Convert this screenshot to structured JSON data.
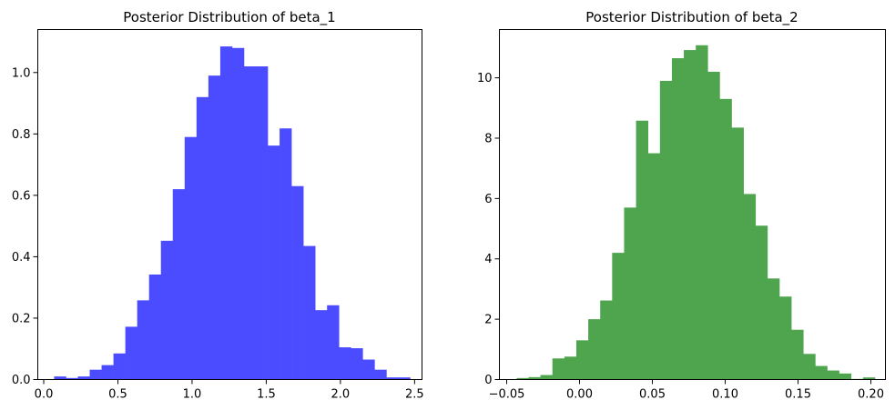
{
  "chart_data": [
    {
      "type": "bar",
      "title": "Posterior Distribution of beta_1",
      "xlabel": "",
      "ylabel": "",
      "color": "#4b4bff",
      "xlim": [
        -0.04,
        2.55
      ],
      "ylim": [
        0,
        1.14
      ],
      "grid": false,
      "bin_edges": [
        0.07,
        0.15,
        0.23,
        0.31,
        0.39,
        0.47,
        0.55,
        0.63,
        0.71,
        0.79,
        0.87,
        0.95,
        1.03,
        1.11,
        1.19,
        1.27,
        1.35,
        1.43,
        1.51,
        1.59,
        1.67,
        1.75,
        1.83,
        1.91,
        1.99,
        2.07,
        2.15,
        2.23,
        2.31,
        2.39,
        2.47
      ],
      "values": [
        0.01,
        0.005,
        0.01,
        0.032,
        0.047,
        0.085,
        0.172,
        0.258,
        0.342,
        0.452,
        0.62,
        0.79,
        0.92,
        0.99,
        1.085,
        1.08,
        1.02,
        1.02,
        0.762,
        0.818,
        0.63,
        0.435,
        0.226,
        0.242,
        0.105,
        0.102,
        0.065,
        0.032,
        0.007,
        0.007
      ],
      "xticks": [
        0.0,
        0.5,
        1.0,
        1.5,
        2.0,
        2.5
      ],
      "xtick_labels": [
        "0.0",
        "0.5",
        "1.0",
        "1.5",
        "2.0",
        "2.5"
      ],
      "yticks": [
        0.0,
        0.2,
        0.4,
        0.6,
        0.8,
        1.0
      ],
      "ytick_labels": [
        "0.0",
        "0.2",
        "0.4",
        "0.6",
        "0.8",
        "1.0"
      ]
    },
    {
      "type": "bar",
      "title": "Posterior Distribution of beta_2",
      "xlabel": "",
      "ylabel": "",
      "color": "#4ea54e",
      "xlim": [
        -0.055,
        0.21
      ],
      "ylim": [
        0,
        11.6
      ],
      "grid": false,
      "bin_edges": [
        -0.0432,
        -0.035,
        -0.0268,
        -0.0186,
        -0.0104,
        -0.0022,
        0.006,
        0.0142,
        0.0224,
        0.0306,
        0.0388,
        0.047,
        0.0552,
        0.0634,
        0.0716,
        0.0798,
        0.088,
        0.0962,
        0.1044,
        0.1126,
        0.1208,
        0.129,
        0.1372,
        0.1454,
        0.1536,
        0.1618,
        0.17,
        0.1782,
        0.1864,
        0.1946,
        0.2028
      ],
      "values": [
        0.05,
        0.08,
        0.15,
        0.7,
        0.76,
        1.3,
        2.0,
        2.62,
        4.2,
        5.7,
        8.58,
        7.5,
        9.9,
        10.65,
        10.92,
        11.08,
        10.2,
        9.3,
        8.35,
        6.15,
        5.1,
        3.35,
        2.75,
        1.65,
        0.85,
        0.45,
        0.3,
        0.2,
        0.02,
        0.07
      ],
      "xticks": [
        -0.05,
        0.0,
        0.05,
        0.1,
        0.15,
        0.2
      ],
      "xtick_labels": [
        "−0.05",
        "0.00",
        "0.05",
        "0.10",
        "0.15",
        "0.20"
      ],
      "yticks": [
        0,
        2,
        4,
        6,
        8,
        10
      ],
      "ytick_labels": [
        "0",
        "2",
        "4",
        "6",
        "8",
        "10"
      ]
    }
  ]
}
